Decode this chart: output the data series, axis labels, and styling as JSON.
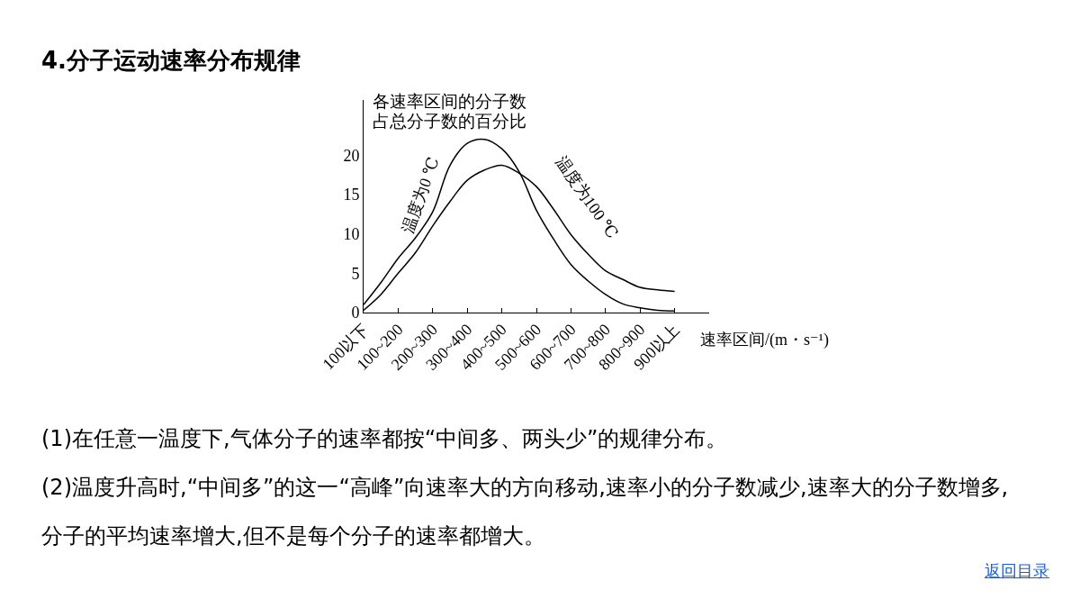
{
  "chart_data": {
    "type": "line",
    "title": "4.分子运动速率分布规律",
    "ylabel": "各速率区间的分子数占总分子数的百分比",
    "xlabel": "速率区间/(m・s⁻¹)",
    "categories": [
      "100以下",
      null,
      "100~200",
      null,
      "200~300",
      null,
      "300~400",
      null,
      "400~500",
      null,
      "500~600",
      null,
      "600~700",
      null,
      "700~800",
      null,
      "800~900",
      null,
      "900以上"
    ],
    "ylim": [
      0,
      27
    ],
    "yticks": [
      0,
      5,
      10,
      15,
      20
    ],
    "grid": false,
    "legend": false,
    "marker": "none",
    "line_style": "solid",
    "series": [
      {
        "name": "温度为0 ℃",
        "color": "#000000",
        "values": [
          1.0,
          3.8,
          6.9,
          9.5,
          12.8,
          18.7,
          21.5,
          22.0,
          20.8,
          17.9,
          13,
          9.3,
          6.1,
          4.0,
          2.3,
          1.1,
          0.6,
          0.3,
          0.2
        ]
      },
      {
        "name": "温度为100 ℃",
        "color": "#000000",
        "values": [
          0.3,
          2.3,
          5,
          7.6,
          11,
          14.1,
          16.8,
          18.1,
          18.7,
          17.7,
          16,
          13.1,
          9.9,
          7.4,
          5.3,
          4.2,
          3.2,
          2.9,
          2.7
        ]
      }
    ],
    "annotations": [
      "(1)在任意一温度下,气体分子的速率都按“中间多、两头少”的规律分布。",
      "(2)温度升高时,“中间多”的这一“高峰”向速率大的方向移动,速率小的分子数减少,速率大的分子数增多,分子的平均速率增大,但不是每个分子的速率都增大。",
      "返回目录"
    ]
  }
}
